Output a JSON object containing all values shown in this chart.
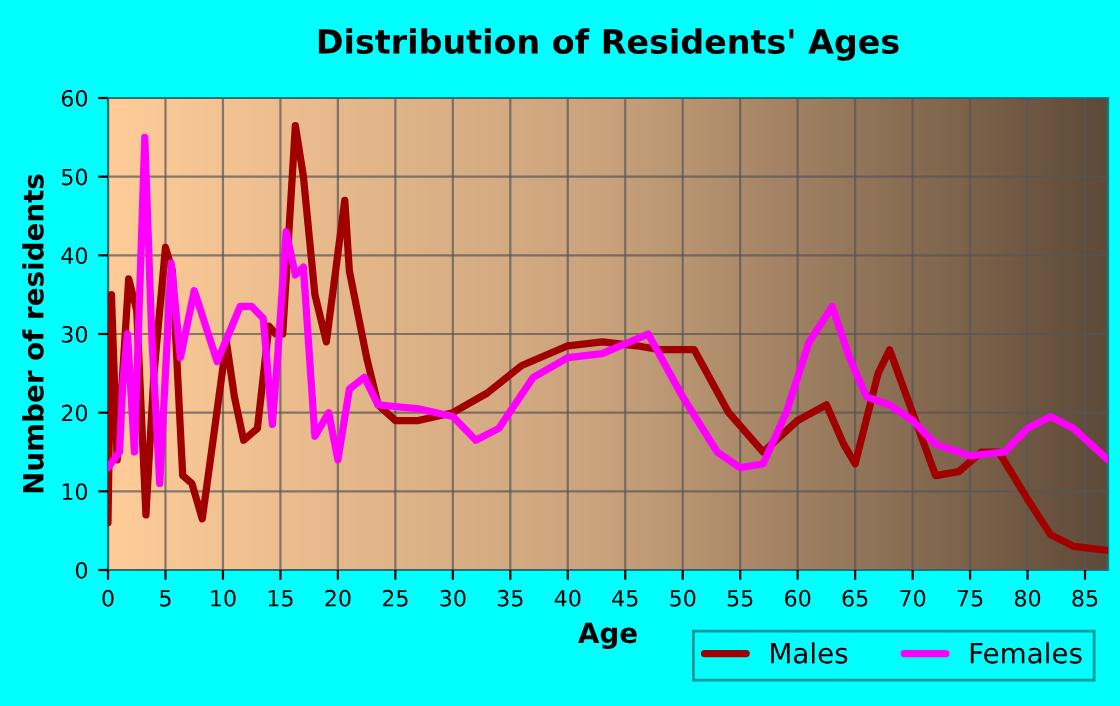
{
  "chart_data": {
    "type": "line",
    "title": "Distribution of Residents' Ages",
    "xlabel": "Age",
    "ylabel": "Number of residents",
    "xlim": [
      0,
      87
    ],
    "xticks": [
      0,
      5,
      10,
      15,
      20,
      25,
      30,
      35,
      40,
      45,
      50,
      55,
      60,
      65,
      70,
      75,
      80,
      85
    ],
    "ylim": [
      0,
      60
    ],
    "yticks": [
      0,
      10,
      20,
      30,
      40,
      50,
      60
    ],
    "grid": true,
    "legend": "bottom right",
    "marker": "none",
    "line_style": "solid",
    "series": [
      {
        "name": "Males",
        "color": "#a00000",
        "x": [
          0,
          0.3,
          0.8,
          1.8,
          2.5,
          3.3,
          4,
          5,
          5.6,
          6.5,
          7.3,
          8.2,
          9,
          10.3,
          11,
          11.8,
          13,
          14,
          14.6,
          15.2,
          16.3,
          17,
          18,
          19,
          20.6,
          21,
          22.5,
          23.5,
          25,
          27,
          30,
          33,
          36,
          40,
          43,
          46,
          48,
          51,
          54,
          57,
          60,
          62.5,
          64,
          65,
          67,
          68,
          70,
          72,
          74,
          76,
          77.5,
          80,
          82,
          84,
          87
        ],
        "values": [
          6,
          35,
          14,
          37,
          33,
          7,
          25,
          41,
          38,
          12,
          11,
          6.5,
          15,
          29,
          22,
          16.5,
          18,
          31,
          30,
          30,
          56.5,
          50,
          35,
          29,
          47,
          38,
          27,
          21,
          19,
          19,
          20,
          22.5,
          26,
          28.5,
          29,
          28.5,
          28,
          28,
          20,
          15,
          19,
          21,
          16,
          13.5,
          25,
          28,
          20,
          12,
          12.5,
          15,
          15,
          9,
          4.5,
          3,
          2.5
        ]
      },
      {
        "name": "Females",
        "color": "#ff00ff",
        "x": [
          0,
          0.5,
          1,
          1.3,
          1.7,
          2.3,
          3.2,
          3.8,
          4.5,
          5.5,
          6.3,
          7.5,
          9.5,
          10.5,
          11.5,
          12.5,
          13.5,
          14.3,
          14.8,
          15.5,
          16.3,
          17,
          18,
          19.2,
          20,
          21,
          22.3,
          23.5,
          27,
          30,
          32,
          34,
          37,
          40,
          43,
          47,
          50,
          53,
          55,
          57,
          59,
          61,
          63,
          64.5,
          66,
          68,
          70,
          72,
          75,
          78,
          80,
          82,
          84,
          87
        ],
        "values": [
          13,
          14,
          15,
          24,
          30,
          15,
          55,
          30,
          11,
          39,
          27,
          35.5,
          26.5,
          30,
          33.5,
          33.5,
          32,
          18.5,
          28,
          43,
          37.5,
          38.5,
          17,
          20,
          14,
          23,
          24.5,
          21,
          20.5,
          19.5,
          16.5,
          18,
          24.5,
          27,
          27.5,
          30,
          22,
          15,
          13,
          13.5,
          20,
          29,
          33.5,
          27,
          22,
          21,
          19,
          16,
          14.5,
          15,
          18,
          19.5,
          18,
          14
        ]
      }
    ]
  }
}
